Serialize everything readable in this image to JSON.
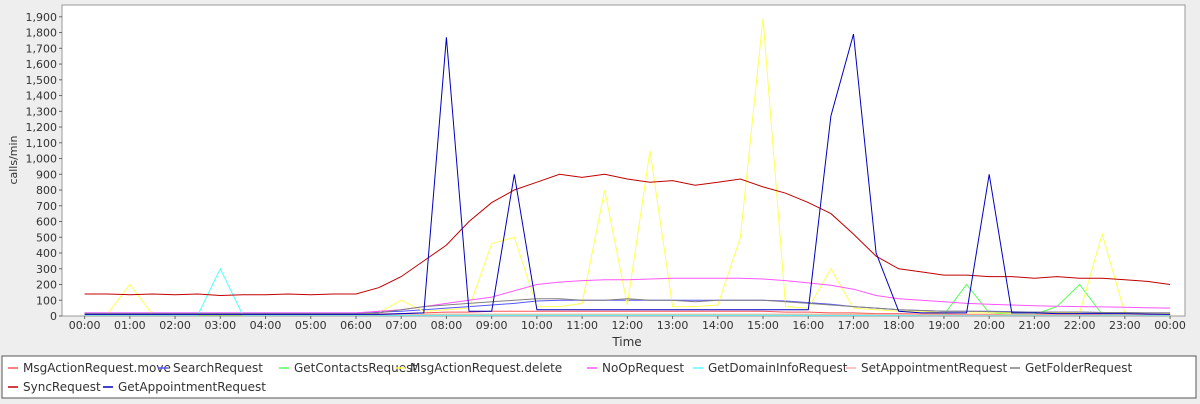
{
  "chart_data": {
    "type": "line",
    "x_label": "Time",
    "y_label": "calls/min",
    "x": [
      0,
      0.5,
      1,
      1.5,
      2,
      2.5,
      3,
      3.5,
      4,
      4.5,
      5,
      5.5,
      6,
      6.5,
      7,
      7.5,
      8,
      8.5,
      9,
      9.5,
      10,
      10.5,
      11,
      11.5,
      12,
      12.5,
      13,
      13.5,
      14,
      14.5,
      15,
      15.5,
      16,
      16.5,
      17,
      17.5,
      18,
      18.5,
      19,
      19.5,
      20,
      20.5,
      21,
      21.5,
      22,
      22.5,
      23,
      23.5,
      24
    ],
    "xlim": [
      -0.5,
      24.33
    ],
    "xticks": [
      {
        "value": 0,
        "label": "00:00"
      },
      {
        "value": 1,
        "label": "01:00"
      },
      {
        "value": 2,
        "label": "02:00"
      },
      {
        "value": 3,
        "label": "03:00"
      },
      {
        "value": 4,
        "label": "04:00"
      },
      {
        "value": 5,
        "label": "05:00"
      },
      {
        "value": 6,
        "label": "06:00"
      },
      {
        "value": 7,
        "label": "07:00"
      },
      {
        "value": 8,
        "label": "08:00"
      },
      {
        "value": 9,
        "label": "09:00"
      },
      {
        "value": 10,
        "label": "10:00"
      },
      {
        "value": 11,
        "label": "11:00"
      },
      {
        "value": 12,
        "label": "12:00"
      },
      {
        "value": 13,
        "label": "13:00"
      },
      {
        "value": 14,
        "label": "14:00"
      },
      {
        "value": 15,
        "label": "15:00"
      },
      {
        "value": 16,
        "label": "16:00"
      },
      {
        "value": 17,
        "label": "17:00"
      },
      {
        "value": 18,
        "label": "18:00"
      },
      {
        "value": 19,
        "label": "19:00"
      },
      {
        "value": 20,
        "label": "20:00"
      },
      {
        "value": 21,
        "label": "21:00"
      },
      {
        "value": 22,
        "label": "22:00"
      },
      {
        "value": 23,
        "label": "23:00"
      },
      {
        "value": 24,
        "label": "00:00"
      }
    ],
    "ylim": [
      0,
      1975
    ],
    "yticks": [
      0,
      100,
      200,
      300,
      400,
      500,
      600,
      700,
      800,
      900,
      {
        "value": 1000,
        "label": "1,000"
      },
      {
        "value": 1100,
        "label": "1,100"
      },
      {
        "value": 1200,
        "label": "1,200"
      },
      {
        "value": 1300,
        "label": "1,300"
      },
      {
        "value": 1400,
        "label": "1,400"
      },
      {
        "value": 1500,
        "label": "1,500"
      },
      {
        "value": 1600,
        "label": "1,600"
      },
      {
        "value": 1700,
        "label": "1,700"
      },
      {
        "value": 1800,
        "label": "1,800"
      },
      {
        "value": 1900,
        "label": "1,900"
      }
    ],
    "grid": false,
    "series": [
      {
        "name": "MsgActionRequest.move",
        "color": "#ff5555",
        "values": [
          10,
          10,
          10,
          10,
          10,
          10,
          10,
          10,
          10,
          10,
          10,
          10,
          10,
          12,
          15,
          20,
          25,
          25,
          30,
          30,
          30,
          30,
          30,
          30,
          30,
          30,
          30,
          30,
          30,
          30,
          30,
          25,
          25,
          20,
          20,
          15,
          15,
          12,
          12,
          10,
          10,
          10,
          10,
          10,
          10,
          10,
          10,
          10,
          10
        ]
      },
      {
        "name": "SearchRequest",
        "color": "#5555ff",
        "values": [
          20,
          20,
          20,
          20,
          20,
          20,
          20,
          20,
          20,
          20,
          20,
          20,
          20,
          25,
          30,
          40,
          50,
          60,
          70,
          80,
          95,
          100,
          100,
          100,
          100,
          100,
          100,
          100,
          100,
          100,
          100,
          95,
          85,
          75,
          60,
          50,
          40,
          35,
          30,
          30,
          30,
          28,
          25,
          25,
          25,
          22,
          22,
          20,
          20
        ]
      },
      {
        "name": "GetContactsRequest",
        "color": "#55ff55",
        "values": [
          5,
          5,
          5,
          5,
          5,
          5,
          5,
          5,
          5,
          5,
          5,
          5,
          5,
          5,
          8,
          10,
          10,
          10,
          10,
          10,
          10,
          10,
          10,
          10,
          10,
          10,
          10,
          10,
          10,
          10,
          10,
          10,
          10,
          10,
          10,
          10,
          8,
          8,
          8,
          200,
          20,
          10,
          10,
          60,
          200,
          10,
          8,
          8,
          5
        ]
      },
      {
        "name": "MsgActionRequest.delete",
        "color": "#ffff55",
        "values": [
          10,
          10,
          200,
          10,
          10,
          10,
          10,
          10,
          10,
          10,
          10,
          10,
          10,
          20,
          100,
          30,
          40,
          50,
          460,
          500,
          60,
          60,
          80,
          800,
          70,
          1050,
          60,
          60,
          70,
          500,
          1890,
          60,
          50,
          300,
          50,
          40,
          30,
          30,
          20,
          20,
          20,
          20,
          20,
          20,
          20,
          520,
          20,
          20,
          15
        ]
      },
      {
        "name": "NoOpRequest",
        "color": "#ff55ff",
        "values": [
          20,
          20,
          20,
          20,
          20,
          20,
          20,
          20,
          20,
          20,
          20,
          20,
          20,
          30,
          40,
          60,
          80,
          100,
          120,
          160,
          200,
          215,
          225,
          230,
          230,
          235,
          240,
          240,
          240,
          240,
          235,
          225,
          210,
          195,
          170,
          130,
          110,
          100,
          90,
          80,
          75,
          70,
          65,
          62,
          60,
          58,
          55,
          52,
          50
        ]
      },
      {
        "name": "GetDomainInfoRequest",
        "color": "#55ffff",
        "values": [
          5,
          5,
          5,
          5,
          5,
          5,
          300,
          5,
          5,
          5,
          5,
          5,
          5,
          5,
          5,
          5,
          5,
          5,
          5,
          5,
          5,
          5,
          5,
          5,
          5,
          5,
          5,
          5,
          5,
          5,
          5,
          5,
          5,
          5,
          5,
          5,
          5,
          5,
          5,
          5,
          5,
          5,
          5,
          5,
          5,
          5,
          5,
          5,
          5
        ]
      },
      {
        "name": "SetAppointmentRequest",
        "color": "#ffafaf",
        "values": [
          8,
          8,
          8,
          8,
          8,
          8,
          8,
          8,
          8,
          8,
          8,
          8,
          8,
          8,
          10,
          10,
          12,
          12,
          12,
          12,
          12,
          12,
          12,
          12,
          12,
          12,
          12,
          12,
          12,
          12,
          12,
          12,
          12,
          10,
          10,
          10,
          10,
          8,
          8,
          8,
          8,
          8,
          8,
          8,
          8,
          8,
          8,
          8,
          8
        ]
      },
      {
        "name": "GetFolderRequest",
        "color": "#808080",
        "values": [
          15,
          15,
          15,
          15,
          15,
          15,
          15,
          15,
          15,
          15,
          15,
          15,
          15,
          20,
          40,
          60,
          70,
          80,
          90,
          100,
          110,
          110,
          100,
          100,
          110,
          100,
          100,
          90,
          100,
          100,
          100,
          90,
          80,
          70,
          60,
          50,
          40,
          35,
          30,
          30,
          28,
          25,
          25,
          25,
          25,
          22,
          22,
          20,
          20
        ]
      },
      {
        "name": "SyncRequest",
        "color": "#c00000",
        "values": [
          140,
          140,
          135,
          140,
          135,
          140,
          130,
          135,
          135,
          140,
          135,
          140,
          140,
          180,
          250,
          350,
          450,
          600,
          720,
          800,
          850,
          900,
          880,
          900,
          870,
          850,
          860,
          830,
          850,
          870,
          820,
          780,
          720,
          650,
          520,
          380,
          300,
          280,
          260,
          260,
          250,
          250,
          240,
          250,
          240,
          240,
          230,
          220,
          200
        ]
      },
      {
        "name": "GetAppointmentRequest",
        "color": "#0000c0",
        "values": [
          10,
          10,
          10,
          10,
          10,
          10,
          10,
          10,
          10,
          10,
          10,
          10,
          10,
          10,
          15,
          20,
          1770,
          30,
          30,
          900,
          40,
          40,
          40,
          40,
          40,
          40,
          40,
          40,
          40,
          40,
          40,
          40,
          40,
          1270,
          1790,
          400,
          30,
          20,
          20,
          20,
          900,
          20,
          20,
          15,
          15,
          15,
          15,
          12,
          10
        ]
      }
    ]
  }
}
